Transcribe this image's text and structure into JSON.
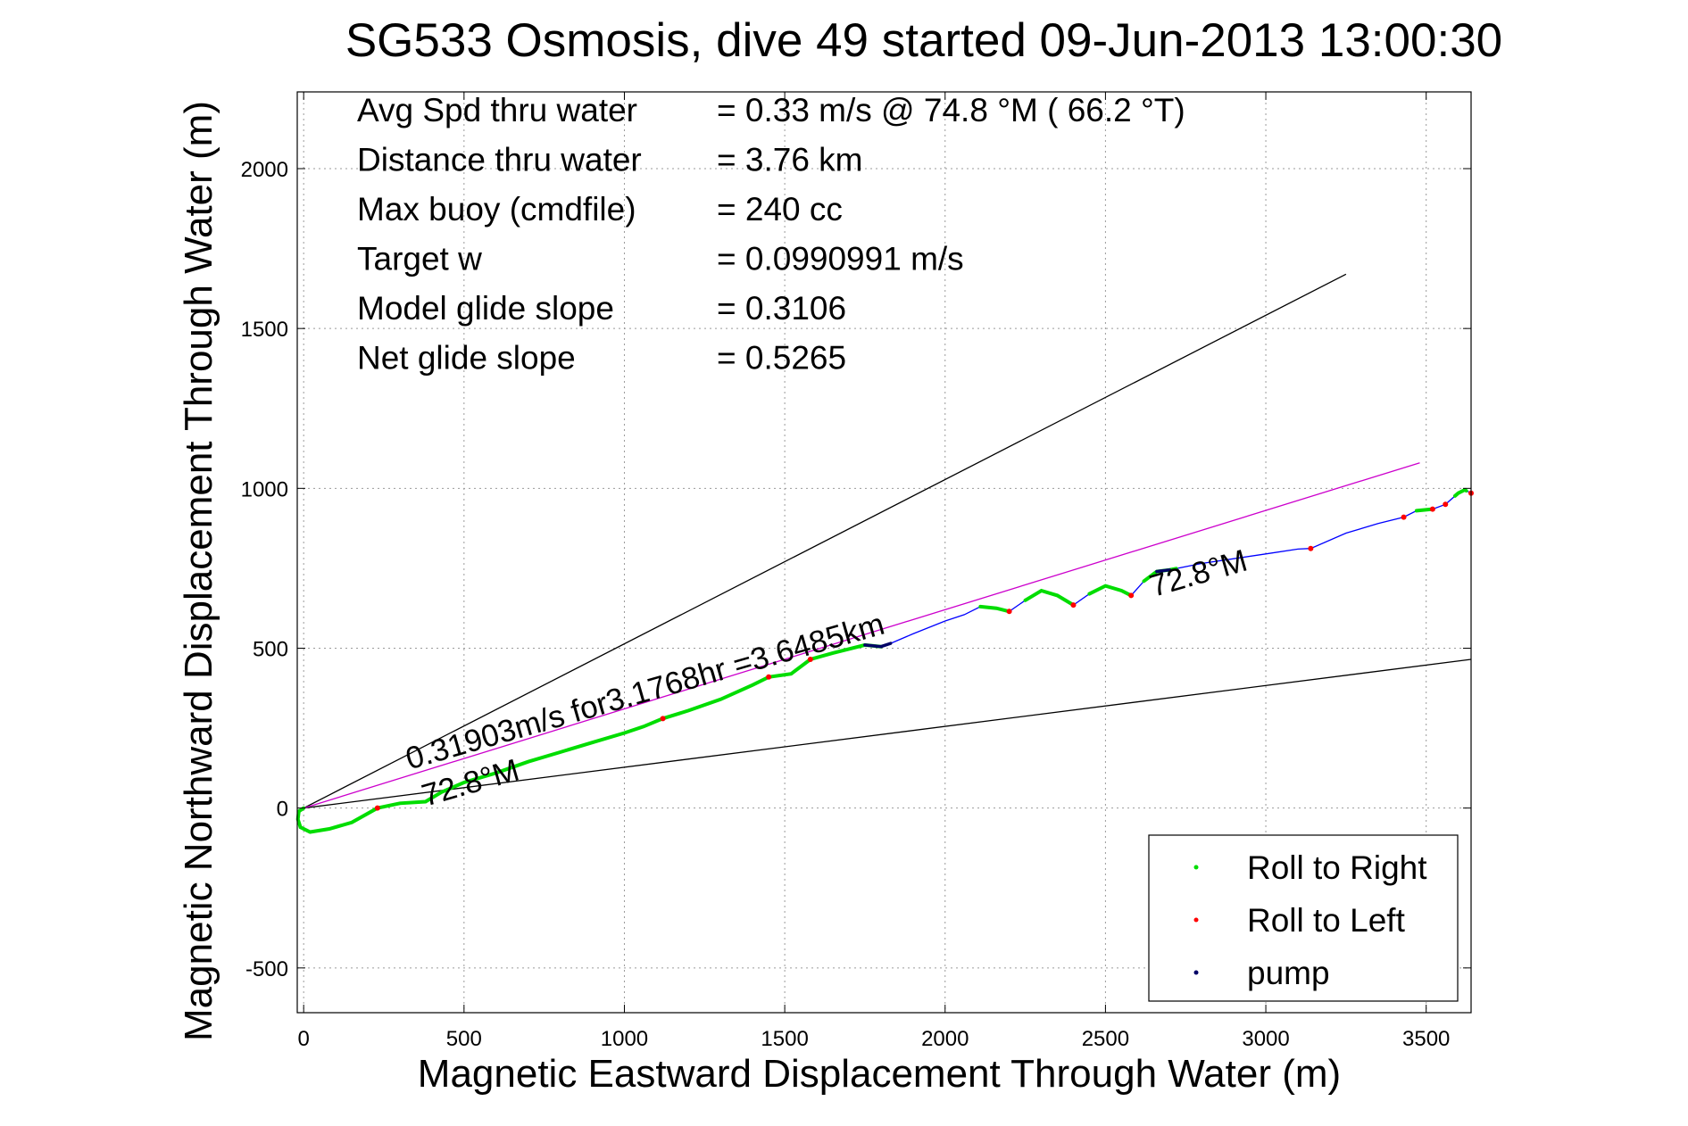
{
  "chart_data": {
    "type": "line",
    "title": "SG533 Osmosis, dive 49 started 09-Jun-2013 13:00:30",
    "xlabel": "Magnetic Eastward Displacement Through Water (m)",
    "ylabel": "Magnetic Northward Displacement Through Water (m)",
    "xlim": [
      -20,
      3640
    ],
    "ylim": [
      -640,
      2240
    ],
    "xticks": [
      0,
      500,
      1000,
      1500,
      2000,
      2500,
      3000,
      3500
    ],
    "yticks": [
      -500,
      0,
      500,
      1000,
      1500,
      2000
    ],
    "xtick_labels": [
      "0",
      "500",
      "1000",
      "1500",
      "2000",
      "2500",
      "3000",
      "3500"
    ],
    "ytick_labels": [
      "-500",
      "0",
      "500",
      "1000",
      "1500",
      "2000"
    ],
    "grid": true,
    "legend_position": "bottom-right",
    "info_lines": [
      {
        "label": "Avg Spd thru water",
        "value": "=  0.33 m/s @  74.8 °M ( 66.2 °T)"
      },
      {
        "label": "Distance thru water",
        "value": "=  3.76 km"
      },
      {
        "label": "Max buoy (cmdfile)",
        "value": "= 240 cc"
      },
      {
        "label": "Target w",
        "value": "= 0.0990991 m/s"
      },
      {
        "label": "Model glide slope",
        "value": "= 0.3106"
      },
      {
        "label": "Net glide slope",
        "value": "= 0.5265"
      }
    ],
    "annotations": [
      {
        "text": "0.31903m/s for3.1768hr =3.6485km",
        "x": 330,
        "y": 120,
        "angle_deg": 16
      },
      {
        "text": "72.8°M",
        "x": 380,
        "y": 5,
        "angle_deg": 16
      },
      {
        "text": "72.8°M",
        "x": 2650,
        "y": 660,
        "angle_deg": 16
      }
    ],
    "reference_lines": [
      {
        "name": "",
        "color": "#000000",
        "points": [
          [
            0,
            0
          ],
          [
            3250,
            1670
          ]
        ]
      },
      {
        "name": "",
        "color": "#000000",
        "points": [
          [
            0,
            0
          ],
          [
            3640,
            465
          ]
        ]
      },
      {
        "name": "",
        "color": "#cc00cc",
        "points": [
          [
            0,
            0
          ],
          [
            3480,
            1080
          ]
        ]
      }
    ],
    "track": {
      "color": "#0000ff",
      "points": [
        [
          0,
          0
        ],
        [
          -15,
          -10
        ],
        [
          -18,
          -35
        ],
        [
          -10,
          -60
        ],
        [
          20,
          -75
        ],
        [
          80,
          -65
        ],
        [
          150,
          -45
        ],
        [
          230,
          0
        ],
        [
          300,
          15
        ],
        [
          380,
          20
        ],
        [
          430,
          50
        ],
        [
          500,
          80
        ],
        [
          600,
          110
        ],
        [
          700,
          145
        ],
        [
          800,
          175
        ],
        [
          900,
          205
        ],
        [
          1000,
          235
        ],
        [
          1060,
          255
        ],
        [
          1120,
          280
        ],
        [
          1200,
          305
        ],
        [
          1300,
          340
        ],
        [
          1400,
          385
        ],
        [
          1450,
          410
        ],
        [
          1520,
          420
        ],
        [
          1580,
          465
        ],
        [
          1650,
          485
        ],
        [
          1750,
          510
        ],
        [
          1800,
          505
        ],
        [
          1830,
          515
        ],
        [
          1900,
          545
        ],
        [
          2000,
          585
        ],
        [
          2060,
          605
        ],
        [
          2110,
          630
        ],
        [
          2160,
          625
        ],
        [
          2200,
          615
        ],
        [
          2250,
          650
        ],
        [
          2300,
          680
        ],
        [
          2350,
          665
        ],
        [
          2400,
          635
        ],
        [
          2450,
          670
        ],
        [
          2500,
          695
        ],
        [
          2550,
          680
        ],
        [
          2580,
          665
        ],
        [
          2620,
          710
        ],
        [
          2660,
          740
        ],
        [
          2700,
          745
        ],
        [
          2800,
          765
        ],
        [
          2900,
          780
        ],
        [
          3000,
          795
        ],
        [
          3100,
          810
        ],
        [
          3140,
          812
        ],
        [
          3250,
          860
        ],
        [
          3350,
          890
        ],
        [
          3430,
          910
        ],
        [
          3470,
          930
        ],
        [
          3520,
          935
        ],
        [
          3560,
          950
        ],
        [
          3600,
          985
        ],
        [
          3620,
          995
        ],
        [
          3640,
          985
        ]
      ]
    },
    "series": [
      {
        "name": "Roll to Right",
        "color": "#00dd00",
        "ranges": [
          [
            -18,
            1800
          ],
          [
            2110,
            2200
          ],
          [
            2250,
            2400
          ],
          [
            2450,
            2580
          ],
          [
            2620,
            2720
          ],
          [
            3470,
            3520
          ],
          [
            3590,
            3625
          ]
        ]
      },
      {
        "name": "Roll to Left",
        "color": "#ff0000",
        "points": [
          [
            230,
            0
          ],
          [
            1120,
            280
          ],
          [
            1450,
            410
          ],
          [
            1580,
            465
          ],
          [
            2200,
            615
          ],
          [
            2400,
            635
          ],
          [
            2580,
            665
          ],
          [
            3140,
            812
          ],
          [
            3430,
            910
          ],
          [
            3520,
            935
          ],
          [
            3560,
            950
          ],
          [
            3640,
            985
          ]
        ]
      },
      {
        "name": "pump",
        "color": "#000066",
        "ranges": [
          [
            1750,
            1830
          ],
          [
            2660,
            2700
          ]
        ]
      }
    ]
  }
}
